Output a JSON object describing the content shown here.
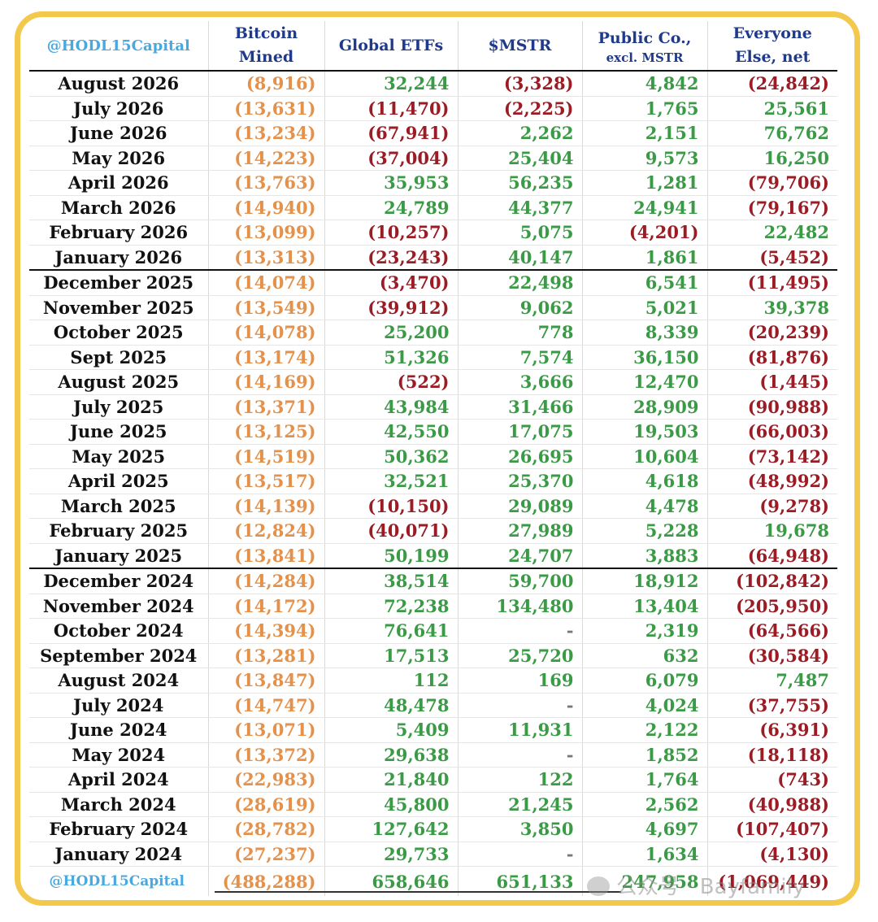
{
  "header": {
    "brand": "@HODL15Capital",
    "col_btc_mined": [
      "Bitcoin",
      "Mined"
    ],
    "col_etfs": "Global ETFs",
    "col_mstr": "$MSTR",
    "col_public": [
      "Public Co.,",
      "excl. MSTR"
    ],
    "col_everyone": [
      "Everyone",
      "Else, net"
    ]
  },
  "rows": [
    {
      "month": "August 2026",
      "mined": "(8,916)",
      "etfs": "32,244",
      "mstr": "(3,328)",
      "public": "4,842",
      "everyone": "(24,842)"
    },
    {
      "month": "July 2026",
      "mined": "(13,631)",
      "etfs": "(11,470)",
      "mstr": "(2,225)",
      "public": "1,765",
      "everyone": "25,561"
    },
    {
      "month": "June 2026",
      "mined": "(13,234)",
      "etfs": "(67,941)",
      "mstr": "2,262",
      "public": "2,151",
      "everyone": "76,762"
    },
    {
      "month": "May 2026",
      "mined": "(14,223)",
      "etfs": "(37,004)",
      "mstr": "25,404",
      "public": "9,573",
      "everyone": "16,250"
    },
    {
      "month": "April 2026",
      "mined": "(13,763)",
      "etfs": "35,953",
      "mstr": "56,235",
      "public": "1,281",
      "everyone": "(79,706)"
    },
    {
      "month": "March 2026",
      "mined": "(14,940)",
      "etfs": "24,789",
      "mstr": "44,377",
      "public": "24,941",
      "everyone": "(79,167)"
    },
    {
      "month": "February 2026",
      "mined": "(13,099)",
      "etfs": "(10,257)",
      "mstr": "5,075",
      "public": "(4,201)",
      "everyone": "22,482"
    },
    {
      "month": "January 2026",
      "mined": "(13,313)",
      "etfs": "(23,243)",
      "mstr": "40,147",
      "public": "1,861",
      "everyone": "(5,452)"
    },
    {
      "month": "December 2025",
      "mined": "(14,074)",
      "etfs": "(3,470)",
      "mstr": "22,498",
      "public": "6,541",
      "everyone": "(11,495)"
    },
    {
      "month": "November 2025",
      "mined": "(13,549)",
      "etfs": "(39,912)",
      "mstr": "9,062",
      "public": "5,021",
      "everyone": "39,378"
    },
    {
      "month": "October 2025",
      "mined": "(14,078)",
      "etfs": "25,200",
      "mstr": "778",
      "public": "8,339",
      "everyone": "(20,239)"
    },
    {
      "month": "Sept 2025",
      "mined": "(13,174)",
      "etfs": "51,326",
      "mstr": "7,574",
      "public": "36,150",
      "everyone": "(81,876)"
    },
    {
      "month": "August 2025",
      "mined": "(14,169)",
      "etfs": "(522)",
      "mstr": "3,666",
      "public": "12,470",
      "everyone": "(1,445)"
    },
    {
      "month": "July 2025",
      "mined": "(13,371)",
      "etfs": "43,984",
      "mstr": "31,466",
      "public": "28,909",
      "everyone": "(90,988)"
    },
    {
      "month": "June 2025",
      "mined": "(13,125)",
      "etfs": "42,550",
      "mstr": "17,075",
      "public": "19,503",
      "everyone": "(66,003)"
    },
    {
      "month": "May 2025",
      "mined": "(14,519)",
      "etfs": "50,362",
      "mstr": "26,695",
      "public": "10,604",
      "everyone": "(73,142)"
    },
    {
      "month": "April 2025",
      "mined": "(13,517)",
      "etfs": "32,521",
      "mstr": "25,370",
      "public": "4,618",
      "everyone": "(48,992)"
    },
    {
      "month": "March 2025",
      "mined": "(14,139)",
      "etfs": "(10,150)",
      "mstr": "29,089",
      "public": "4,478",
      "everyone": "(9,278)"
    },
    {
      "month": "February 2025",
      "mined": "(12,824)",
      "etfs": "(40,071)",
      "mstr": "27,989",
      "public": "5,228",
      "everyone": "19,678"
    },
    {
      "month": "January 2025",
      "mined": "(13,841)",
      "etfs": "50,199",
      "mstr": "24,707",
      "public": "3,883",
      "everyone": "(64,948)"
    },
    {
      "month": "December 2024",
      "mined": "(14,284)",
      "etfs": "38,514",
      "mstr": "59,700",
      "public": "18,912",
      "everyone": "(102,842)"
    },
    {
      "month": "November 2024",
      "mined": "(14,172)",
      "etfs": "72,238",
      "mstr": "134,480",
      "public": "13,404",
      "everyone": "(205,950)"
    },
    {
      "month": "October 2024",
      "mined": "(14,394)",
      "etfs": "76,641",
      "mstr": "-",
      "public": "2,319",
      "everyone": "(64,566)"
    },
    {
      "month": "September 2024",
      "mined": "(13,281)",
      "etfs": "17,513",
      "mstr": "25,720",
      "public": "632",
      "everyone": "(30,584)"
    },
    {
      "month": "August 2024",
      "mined": "(13,847)",
      "etfs": "112",
      "mstr": "169",
      "public": "6,079",
      "everyone": "7,487"
    },
    {
      "month": "July 2024",
      "mined": "(14,747)",
      "etfs": "48,478",
      "mstr": "-",
      "public": "4,024",
      "everyone": "(37,755)"
    },
    {
      "month": "June 2024",
      "mined": "(13,071)",
      "etfs": "5,409",
      "mstr": "11,931",
      "public": "2,122",
      "everyone": "(6,391)"
    },
    {
      "month": "May 2024",
      "mined": "(13,372)",
      "etfs": "29,638",
      "mstr": "-",
      "public": "1,852",
      "everyone": "(18,118)"
    },
    {
      "month": "April 2024",
      "mined": "(22,983)",
      "etfs": "21,840",
      "mstr": "122",
      "public": "1,764",
      "everyone": "(743)"
    },
    {
      "month": "March 2024",
      "mined": "(28,619)",
      "etfs": "45,800",
      "mstr": "21,245",
      "public": "2,562",
      "everyone": "(40,988)"
    },
    {
      "month": "February 2024",
      "mined": "(28,782)",
      "etfs": "127,642",
      "mstr": "3,850",
      "public": "4,697",
      "everyone": "(107,407)"
    },
    {
      "month": "January 2024",
      "mined": "(27,237)",
      "etfs": "29,733",
      "mstr": "-",
      "public": "1,634",
      "everyone": "(4,130)"
    }
  ],
  "totals": {
    "brand": "@HODL15Capital",
    "mined": "(488,288)",
    "etfs": "658,646",
    "mstr": "651,133",
    "public": "247,958",
    "everyone": "(1,069,449)"
  },
  "watermark": "公众号 · Bayfamily",
  "colors": {
    "frame": "#f2c94c",
    "mined": "#e3914b",
    "positive": "#3a9a45",
    "negative": "#9b1c24",
    "header": "#1f3a8a",
    "brand": "#4aa8e0"
  }
}
